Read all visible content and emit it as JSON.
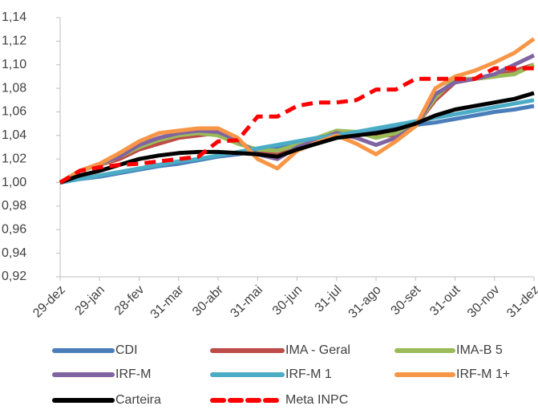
{
  "chart_data": {
    "type": "line",
    "categories": [
      "29-dez",
      null,
      "29-jan",
      null,
      "28-fev",
      null,
      "31-mar",
      null,
      "30-abr",
      null,
      "31-mai",
      null,
      "30-jun",
      null,
      "31-jul",
      null,
      "31-ago",
      null,
      "30-set",
      null,
      "31-out",
      null,
      "30-nov",
      null,
      "31-dez"
    ],
    "ylim": [
      0.92,
      1.14
    ],
    "yticks": [
      {
        "value": 0.92,
        "label": "0,92"
      },
      {
        "value": 0.94,
        "label": "0,94"
      },
      {
        "value": 0.96,
        "label": "0,96"
      },
      {
        "value": 0.98,
        "label": "0,98"
      },
      {
        "value": 1.0,
        "label": "1,00"
      },
      {
        "value": 1.02,
        "label": "1,02"
      },
      {
        "value": 1.04,
        "label": "1,04"
      },
      {
        "value": 1.06,
        "label": "1,06"
      },
      {
        "value": 1.08,
        "label": "1,08"
      },
      {
        "value": 1.1,
        "label": "1,10"
      },
      {
        "value": 1.12,
        "label": "1,12"
      },
      {
        "value": 1.14,
        "label": "1,14"
      }
    ],
    "grid": false,
    "legend": "bottom",
    "series": [
      {
        "name": "CDI",
        "color": "#4a7ebb",
        "values": [
          1.0,
          1.003,
          1.005,
          1.008,
          1.011,
          1.014,
          1.016,
          1.019,
          1.022,
          1.024,
          1.027,
          1.03,
          1.033,
          1.035,
          1.038,
          1.041,
          1.043,
          1.046,
          1.049,
          1.051,
          1.054,
          1.057,
          1.06,
          1.062,
          1.065
        ]
      },
      {
        "name": "IMA - Geral",
        "color": "#be4b48",
        "values": [
          1.0,
          1.01,
          1.015,
          1.02,
          1.028,
          1.033,
          1.038,
          1.04,
          1.042,
          1.035,
          1.025,
          1.025,
          1.03,
          1.035,
          1.04,
          1.042,
          1.04,
          1.04,
          1.048,
          1.07,
          1.085,
          1.088,
          1.09,
          1.095,
          1.1
        ]
      },
      {
        "name": "IMA-B 5",
        "color": "#9bbb59",
        "values": [
          1.0,
          1.01,
          1.015,
          1.022,
          1.03,
          1.036,
          1.04,
          1.042,
          1.04,
          1.033,
          1.028,
          1.027,
          1.032,
          1.038,
          1.044,
          1.043,
          1.038,
          1.042,
          1.048,
          1.072,
          1.088,
          1.088,
          1.09,
          1.092,
          1.1
        ]
      },
      {
        "name": "IRF-M",
        "color": "#8064a2",
        "values": [
          1.0,
          1.01,
          1.016,
          1.022,
          1.032,
          1.038,
          1.042,
          1.044,
          1.043,
          1.036,
          1.024,
          1.02,
          1.03,
          1.036,
          1.042,
          1.038,
          1.032,
          1.038,
          1.048,
          1.075,
          1.085,
          1.088,
          1.092,
          1.1,
          1.108
        ]
      },
      {
        "name": "IRF-M 1",
        "color": "#4bacc6",
        "values": [
          1.0,
          1.003,
          1.006,
          1.009,
          1.012,
          1.015,
          1.018,
          1.02,
          1.023,
          1.026,
          1.029,
          1.032,
          1.035,
          1.038,
          1.04,
          1.043,
          1.046,
          1.049,
          1.052,
          1.055,
          1.058,
          1.061,
          1.064,
          1.067,
          1.07
        ]
      },
      {
        "name": "IRF-M 1+",
        "color": "#f79646",
        "values": [
          1.0,
          1.01,
          1.016,
          1.025,
          1.035,
          1.042,
          1.044,
          1.046,
          1.046,
          1.038,
          1.02,
          1.012,
          1.027,
          1.034,
          1.04,
          1.033,
          1.024,
          1.035,
          1.048,
          1.08,
          1.09,
          1.095,
          1.102,
          1.11,
          1.122
        ]
      },
      {
        "name": "Carteira",
        "color": "#000000",
        "values": [
          1.0,
          1.006,
          1.01,
          1.015,
          1.02,
          1.023,
          1.025,
          1.026,
          1.026,
          1.025,
          1.024,
          1.022,
          1.028,
          1.033,
          1.038,
          1.04,
          1.042,
          1.045,
          1.05,
          1.057,
          1.062,
          1.065,
          1.068,
          1.071,
          1.076
        ]
      },
      {
        "name": "Meta INPC",
        "color": "#ff0000",
        "dashed": true,
        "values": [
          1.0,
          1.01,
          1.013,
          1.015,
          1.016,
          1.018,
          1.02,
          1.022,
          1.035,
          1.036,
          1.056,
          1.056,
          1.065,
          1.068,
          1.068,
          1.07,
          1.079,
          1.079,
          1.088,
          1.088,
          1.088,
          1.088,
          1.097,
          1.097,
          1.097
        ]
      }
    ]
  }
}
